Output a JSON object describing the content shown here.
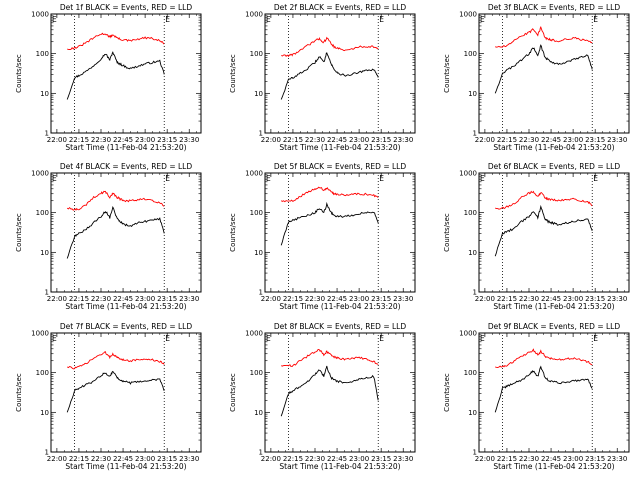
{
  "chart_data": {
    "type": "line",
    "layout": "3x3 grid",
    "xlabel": "Start Time (11-Feb-04 21:53:20)",
    "ylabel": "Counts/sec",
    "y_scale": "log",
    "ylim": [
      1,
      1000
    ],
    "y_ticks": [
      "1",
      "10",
      "100",
      "1000"
    ],
    "x_ticks": [
      "22:00",
      "22:15",
      "22:30",
      "22:45",
      "23:00",
      "23:15",
      "23:30"
    ],
    "xlim_minutes_after_start": [
      -4,
      98
    ],
    "marker_letter": "E",
    "marker_lines_x": [
      "22:12",
      "23:13"
    ],
    "series": [
      {
        "name": "Events",
        "color": "#000000"
      },
      {
        "name": "LLD",
        "color": "#ff0000"
      }
    ],
    "x_points": [
      "22:07",
      "22:12",
      "22:15",
      "22:20",
      "22:25",
      "22:30",
      "22:33",
      "22:36",
      "22:38",
      "22:41",
      "22:43",
      "22:46",
      "22:50",
      "22:55",
      "23:00",
      "23:05",
      "23:10",
      "23:13"
    ],
    "panels": [
      {
        "title": "Det 1f BLACK = Events, RED = LLD",
        "events": [
          7,
          25,
          28,
          36,
          50,
          75,
          100,
          70,
          110,
          60,
          55,
          48,
          42,
          48,
          55,
          60,
          65,
          30
        ],
        "lld": [
          130,
          140,
          150,
          190,
          250,
          310,
          320,
          260,
          300,
          250,
          230,
          220,
          210,
          230,
          250,
          240,
          210,
          180
        ]
      },
      {
        "title": "Det 2f BLACK = Events, RED = LLD",
        "events": [
          7,
          22,
          25,
          32,
          42,
          60,
          85,
          60,
          110,
          55,
          40,
          32,
          28,
          30,
          34,
          37,
          40,
          25
        ],
        "lld": [
          90,
          90,
          95,
          120,
          160,
          210,
          240,
          190,
          250,
          180,
          150,
          135,
          120,
          130,
          150,
          150,
          150,
          130
        ]
      },
      {
        "title": "Det 3f BLACK = Events, RED = LLD",
        "events": [
          10,
          32,
          38,
          50,
          70,
          100,
          140,
          90,
          160,
          80,
          70,
          60,
          55,
          60,
          70,
          80,
          90,
          40
        ],
        "lld": [
          150,
          150,
          160,
          210,
          280,
          340,
          420,
          300,
          450,
          250,
          230,
          220,
          210,
          230,
          250,
          230,
          210,
          190
        ]
      },
      {
        "title": "Det 4f BLACK = Events, RED = LLD",
        "events": [
          7,
          25,
          30,
          38,
          55,
          80,
          110,
          75,
          140,
          70,
          60,
          50,
          45,
          55,
          60,
          65,
          70,
          30
        ],
        "lld": [
          130,
          120,
          120,
          160,
          240,
          310,
          340,
          240,
          310,
          240,
          220,
          200,
          200,
          210,
          220,
          200,
          180,
          150
        ]
      },
      {
        "title": "Det 5f BLACK = Events, RED = LLD",
        "events": [
          15,
          60,
          65,
          75,
          85,
          100,
          130,
          100,
          160,
          100,
          85,
          80,
          80,
          85,
          95,
          100,
          105,
          55
        ],
        "lld": [
          200,
          190,
          200,
          260,
          320,
          400,
          450,
          360,
          420,
          330,
          300,
          290,
          280,
          290,
          300,
          290,
          270,
          240
        ]
      },
      {
        "title": "Det 6f BLACK = Events, RED = LLD",
        "events": [
          8,
          30,
          33,
          40,
          60,
          80,
          110,
          75,
          140,
          70,
          60,
          55,
          50,
          55,
          60,
          65,
          70,
          35
        ],
        "lld": [
          130,
          130,
          140,
          170,
          240,
          310,
          340,
          250,
          320,
          240,
          220,
          210,
          200,
          210,
          220,
          200,
          190,
          150
        ]
      },
      {
        "title": "Det 7f BLACK = Events, RED = LLD",
        "events": [
          10,
          35,
          40,
          50,
          60,
          85,
          100,
          80,
          110,
          75,
          65,
          60,
          55,
          58,
          62,
          65,
          68,
          35
        ],
        "lld": [
          140,
          130,
          140,
          170,
          230,
          290,
          320,
          250,
          300,
          240,
          220,
          210,
          200,
          210,
          220,
          210,
          190,
          160
        ]
      },
      {
        "title": "Det 8f BLACK = Events, RED = LLD",
        "events": [
          8,
          30,
          35,
          45,
          60,
          90,
          120,
          80,
          140,
          75,
          65,
          60,
          55,
          60,
          70,
          75,
          80,
          20
        ],
        "lld": [
          150,
          150,
          150,
          200,
          260,
          330,
          380,
          280,
          340,
          270,
          250,
          230,
          220,
          230,
          240,
          220,
          190,
          160
        ]
      },
      {
        "title": "Det 9f BLACK = Events, RED = LLD",
        "events": [
          10,
          40,
          45,
          55,
          65,
          90,
          110,
          80,
          140,
          75,
          65,
          60,
          55,
          58,
          62,
          65,
          70,
          40
        ],
        "lld": [
          140,
          140,
          150,
          200,
          260,
          320,
          370,
          280,
          340,
          260,
          240,
          220,
          210,
          220,
          230,
          210,
          190,
          160
        ]
      }
    ]
  }
}
